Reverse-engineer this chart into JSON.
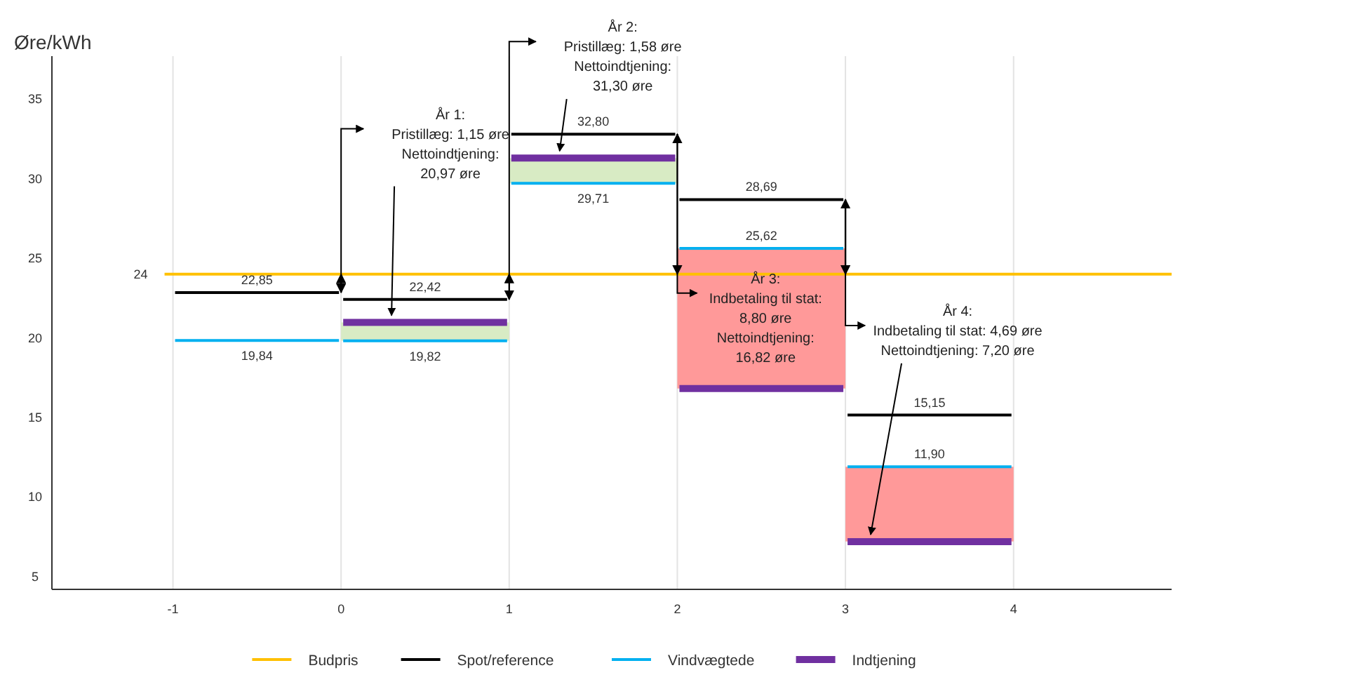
{
  "chart_data": {
    "type": "line",
    "ylabel": "Øre/kWh",
    "xlim": [
      -1.72,
      4.94
    ],
    "xticks": [
      -1,
      0,
      1,
      2,
      3,
      4
    ],
    "ylim": [
      4.2,
      37.7
    ],
    "yticks": [
      5,
      10,
      15,
      20,
      25,
      30,
      35
    ],
    "grid": "x",
    "legend": "bottom",
    "marker": "none",
    "line_style": "solid",
    "series": [
      {
        "name": "Budpris",
        "color": "#ffc000",
        "x": [
          -1.05,
          4.94
        ],
        "values": [
          24,
          24
        ],
        "value_labels": [
          "24",
          null
        ]
      },
      {
        "name": "Spot/reference",
        "color": "#000000",
        "x": [
          -1,
          -0.5,
          0
        ],
        "values": [
          22.85,
          22.85,
          22.85
        ],
        "value_labels": [
          null,
          "22,85",
          null
        ]
      },
      {
        "color": "#000000",
        "x": [
          0,
          0.5,
          1
        ],
        "values": [
          22.42,
          22.42,
          22.42
        ],
        "value_labels": [
          null,
          "22,42",
          null
        ]
      },
      {
        "color": "#000000",
        "x": [
          1,
          1.5,
          2
        ],
        "values": [
          32.8,
          32.8,
          32.8
        ],
        "value_labels": [
          null,
          "32,80",
          null
        ]
      },
      {
        "color": "#000000",
        "x": [
          2,
          2.5,
          3
        ],
        "values": [
          28.69,
          28.69,
          28.69
        ],
        "value_labels": [
          null,
          "28,69",
          null
        ]
      },
      {
        "color": "#000000",
        "x": [
          3,
          3.5,
          4
        ],
        "values": [
          15.15,
          15.15,
          15.15
        ],
        "value_labels": [
          null,
          "15,15",
          null
        ]
      },
      {
        "name": "Vindvægtede",
        "color": "#00b0f0",
        "x": [
          -1,
          -0.5,
          0
        ],
        "values": [
          19.84,
          19.84,
          19.84
        ],
        "value_labels": [
          null,
          "19,84",
          null
        ]
      },
      {
        "color": "#00b0f0",
        "x": [
          0,
          0.5,
          1
        ],
        "values": [
          19.82,
          19.82,
          19.82
        ],
        "value_labels": [
          null,
          "19,82",
          null
        ]
      },
      {
        "color": "#00b0f0",
        "x": [
          1,
          1.5,
          2
        ],
        "values": [
          29.71,
          29.71,
          29.71
        ],
        "value_labels": [
          null,
          "29,71",
          null
        ]
      },
      {
        "color": "#00b0f0",
        "x": [
          2,
          2.5,
          3
        ],
        "values": [
          25.62,
          25.62,
          25.62
        ],
        "value_labels": [
          null,
          "25,62",
          null
        ]
      },
      {
        "color": "#00b0f0",
        "x": [
          3,
          3.5,
          4
        ],
        "values": [
          11.9,
          11.9,
          11.9
        ],
        "value_labels": [
          null,
          "11,90",
          null
        ]
      },
      {
        "name": "Indtjening",
        "color": "#7030a0",
        "x": [
          0,
          1
        ],
        "values": [
          20.97,
          20.97
        ]
      },
      {
        "color": "#7030a0",
        "x": [
          1,
          2
        ],
        "values": [
          31.3,
          31.3
        ]
      },
      {
        "color": "#7030a0",
        "x": [
          2,
          3
        ],
        "values": [
          16.82,
          16.82
        ]
      },
      {
        "color": "#7030a0",
        "x": [
          3,
          4
        ],
        "values": [
          7.2,
          7.2
        ]
      },
      {
        "type": "bar",
        "x": [
          0.5,
          1.5,
          2.5,
          3.5
        ],
        "base": [
          19.82,
          29.71,
          25.62,
          11.9
        ],
        "values": [
          1.15,
          1.58,
          -8.8,
          -4.69
        ],
        "colors": [
          "#d8ebc4",
          "#d8ebc4",
          "#ff9999",
          "#ff9999"
        ]
      }
    ],
    "annotations": [
      {
        "text": "År 1:\nPristillæg: 1,15 øre\nNettoindtjening:\n20,97 øre",
        "x": 0.3,
        "y": 20.97
      },
      {
        "text": "År 2:\nPristillæg: 1,58 øre\nNettoindtjening:\n31,30 øre",
        "x": 1.3,
        "y": 31.3
      },
      {
        "text": "År 3:\nIndbetaling til stat:\n8,80 øre\nNettoindtjening:\n16,82 øre",
        "x": 2.5,
        "y": 16.82
      },
      {
        "text": "År 4:\nIndbetaling til stat: 4,69 øre\nNettoindtjening: 7,20 øre",
        "x": 3.15,
        "y": 7.2
      }
    ]
  }
}
